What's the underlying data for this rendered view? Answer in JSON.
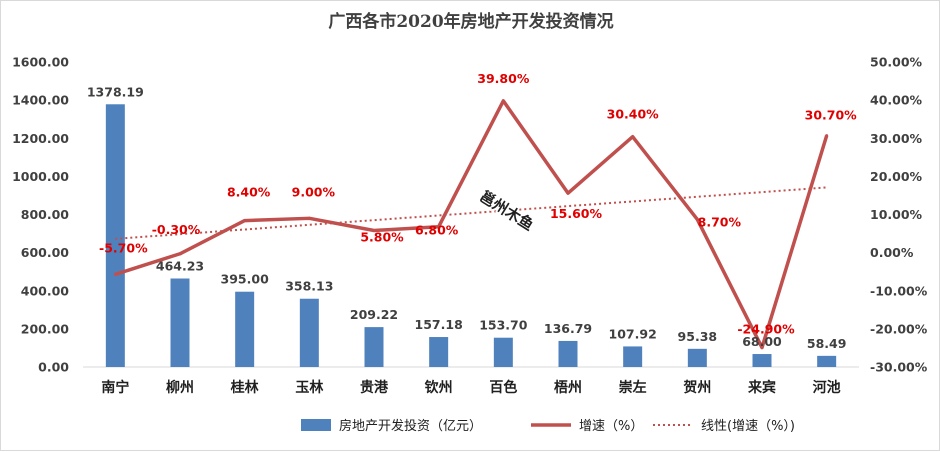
{
  "chart_data": {
    "type": "bar",
    "title": "广西各市2020年房地产开发投资情况",
    "categories": [
      "南宁",
      "柳州",
      "桂林",
      "玉林",
      "贵港",
      "钦州",
      "百色",
      "梧州",
      "崇左",
      "贺州",
      "来宾",
      "河池"
    ],
    "series": [
      {
        "name": "房地产开发投资（亿元）",
        "type": "bar",
        "axis": "left",
        "color": "#4f81bd",
        "values": [
          1378.19,
          464.23,
          395.0,
          358.13,
          209.22,
          157.18,
          153.7,
          136.79,
          107.92,
          95.38,
          68.0,
          58.49
        ],
        "labels": [
          "1378.19",
          "464.23",
          "395.00",
          "358.13",
          "209.22",
          "157.18",
          "153.70",
          "136.79",
          "107.92",
          "95.38",
          "68.00",
          "58.49"
        ]
      },
      {
        "name": "增速（%）",
        "type": "line",
        "axis": "right",
        "color": "#c0504d",
        "values": [
          -5.7,
          -0.3,
          8.4,
          9.0,
          5.8,
          6.8,
          39.8,
          15.6,
          30.4,
          8.7,
          -24.9,
          30.7
        ],
        "labels": [
          "-5.70%",
          "-0.30%",
          "8.40%",
          "9.00%",
          "5.80%",
          "6.80%",
          "39.80%",
          "15.60%",
          "30.40%",
          "8.70%",
          "-24.90%",
          "30.70%"
        ]
      },
      {
        "name": "线性(增速（%）)",
        "type": "trendline",
        "axis": "right",
        "color": "#c0504d"
      }
    ],
    "y_left": {
      "min": 0,
      "max": 1600,
      "ticks": [
        0,
        200,
        400,
        600,
        800,
        1000,
        1200,
        1400,
        1600
      ],
      "tick_labels": [
        "0.00",
        "200.00",
        "400.00",
        "600.00",
        "800.00",
        "1000.00",
        "1200.00",
        "1400.00",
        "1600.00"
      ]
    },
    "y_right": {
      "min": -30,
      "max": 50,
      "ticks": [
        -30,
        -20,
        -10,
        0,
        10,
        20,
        30,
        40,
        50
      ],
      "tick_labels": [
        "-30.00%",
        "-20.00%",
        "-10.00%",
        "0.00%",
        "10.00%",
        "20.00%",
        "30.00%",
        "40.00%",
        "50.00%"
      ]
    },
    "grid": false,
    "legend_position": "bottom",
    "watermark": "邕州木鱼"
  }
}
